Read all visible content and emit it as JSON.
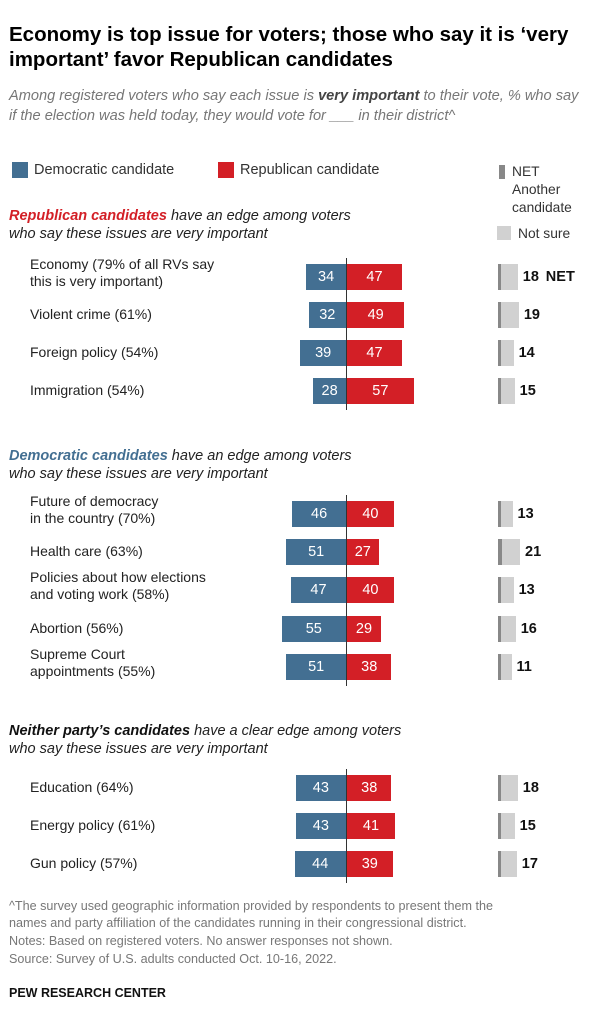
{
  "title": "Economy is top issue for voters; those who say it is ‘very important’ favor Republican candidates",
  "subtitle_parts": {
    "before": "Among registered voters who say each issue is ",
    "emph": "very important",
    "after": " to their vote, % who say if the election was held today, they would vote for ___ in their district^"
  },
  "legend": {
    "dem": "Democratic candidate",
    "rep": "Republican candidate",
    "net_line1": "NET",
    "net_line2": "Another",
    "net_line3": "candidate",
    "not_sure": "Not sure"
  },
  "colors": {
    "dem": "#436f92",
    "rep": "#d31f26",
    "another": "#888888",
    "not_sure": "#d1d1d1"
  },
  "sections": [
    {
      "lead": "Republican candidates",
      "rest": " have an edge among voters",
      "line2": "who say these issues are very important",
      "lead_color": "#d31f26"
    },
    {
      "lead": "Democratic candidates",
      "rest": " have an edge among voters",
      "line2": "who say these issues are very important",
      "lead_color": "#436f92"
    },
    {
      "lead": "Neither party’s candidates",
      "rest": " have a clear edge among voters",
      "line2": "who say these issues are very important",
      "lead_color": "#111111"
    }
  ],
  "net_tag": "NET",
  "chart_data": {
    "type": "bar",
    "title": "Economy is top issue for voters; those who say it is ‘very important’ favor Republican candidates",
    "series_names": [
      "Democratic candidate",
      "Republican candidate",
      "NET Another candidate",
      "Not sure"
    ],
    "rows": [
      {
        "l1": "Economy (79% of all RVs say",
        "l2": "this is very important)",
        "dem": 34,
        "rep": 47,
        "net": 18,
        "another": 2,
        "not_sure": 16
      },
      {
        "l1": "Violent crime (61%)",
        "l2": "",
        "dem": 32,
        "rep": 49,
        "net": 19,
        "another": 2,
        "not_sure": 17
      },
      {
        "l1": "Foreign policy (54%)",
        "l2": "",
        "dem": 39,
        "rep": 47,
        "net": 14,
        "another": 2,
        "not_sure": 12
      },
      {
        "l1": "Immigration (54%)",
        "l2": "",
        "dem": 28,
        "rep": 57,
        "net": 15,
        "another": 2,
        "not_sure": 13
      },
      {
        "l1": "Future of democracy",
        "l2": "in the country (70%)",
        "dem": 46,
        "rep": 40,
        "net": 13,
        "another": 2,
        "not_sure": 11
      },
      {
        "l1": "Health care (63%)",
        "l2": "",
        "dem": 51,
        "rep": 27,
        "net": 21,
        "another": 4,
        "not_sure": 17
      },
      {
        "l1": "Policies about how elections",
        "l2": "and voting work (58%)",
        "dem": 47,
        "rep": 40,
        "net": 13,
        "another": 1,
        "not_sure": 12
      },
      {
        "l1": "Abortion (56%)",
        "l2": "",
        "dem": 55,
        "rep": 29,
        "net": 16,
        "another": 2,
        "not_sure": 14
      },
      {
        "l1": "Supreme Court",
        "l2": "appointments (55%)",
        "dem": 51,
        "rep": 38,
        "net": 11,
        "another": 1,
        "not_sure": 10
      },
      {
        "l1": "Education (64%)",
        "l2": "",
        "dem": 43,
        "rep": 38,
        "net": 18,
        "another": 2,
        "not_sure": 16
      },
      {
        "l1": "Energy policy (61%)",
        "l2": "",
        "dem": 43,
        "rep": 41,
        "net": 15,
        "another": 2,
        "not_sure": 13
      },
      {
        "l1": "Gun policy (57%)",
        "l2": "",
        "dem": 44,
        "rep": 39,
        "net": 17,
        "another": 2,
        "not_sure": 15
      }
    ]
  },
  "footnotes": {
    "line1": "^The survey used geographic information provided by respondents to present them the",
    "line2": "names and party affiliation of the candidates running in their congressional district.",
    "line3": "Notes: Based on registered voters. No answer responses not shown.",
    "line4": "Source: Survey of U.S. adults conducted Oct. 10-16, 2022."
  },
  "brand": "PEW RESEARCH CENTER"
}
